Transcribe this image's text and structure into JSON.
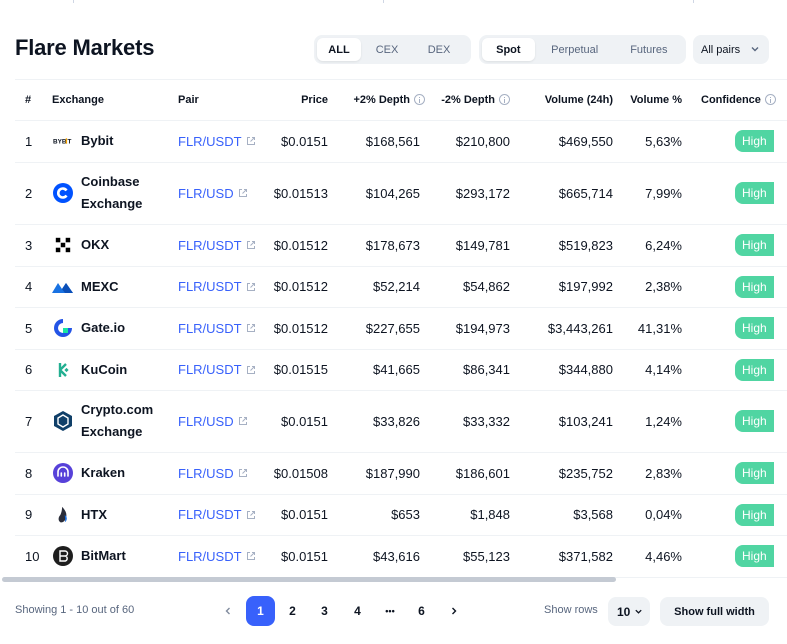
{
  "page": {
    "title": "Flare Markets"
  },
  "filters": {
    "type_tabs": [
      "ALL",
      "CEX",
      "DEX"
    ],
    "type_active": 0,
    "market_tabs": [
      "Spot",
      "Perpetual",
      "Futures"
    ],
    "market_active": 0,
    "pairs_label": "All pairs"
  },
  "table": {
    "headers": {
      "rank": "#",
      "exchange": "Exchange",
      "pair": "Pair",
      "price": "Price",
      "plus_depth": "+2% Depth",
      "minus_depth": "-2% Depth",
      "volume": "Volume (24h)",
      "volume_pct": "Volume %",
      "confidence": "Confidence"
    },
    "rows": [
      {
        "rank": "1",
        "exchange": "Bybit",
        "logo": "bybit-logo-icon",
        "pair": "FLR/USDT",
        "price": "$0.0151",
        "plus_depth": "$168,561",
        "minus_depth": "$210,800",
        "volume": "$469,550",
        "volume_pct": "5,63%",
        "confidence": "High"
      },
      {
        "rank": "2",
        "exchange": "Coinbase Exchange",
        "logo": "coinbase-logo-icon",
        "pair": "FLR/USD",
        "price": "$0.01513",
        "plus_depth": "$104,265",
        "minus_depth": "$293,172",
        "volume": "$665,714",
        "volume_pct": "7,99%",
        "confidence": "High"
      },
      {
        "rank": "3",
        "exchange": "OKX",
        "logo": "okx-logo-icon",
        "pair": "FLR/USDT",
        "price": "$0.01512",
        "plus_depth": "$178,673",
        "minus_depth": "$149,781",
        "volume": "$519,823",
        "volume_pct": "6,24%",
        "confidence": "High"
      },
      {
        "rank": "4",
        "exchange": "MEXC",
        "logo": "mexc-logo-icon",
        "pair": "FLR/USDT",
        "price": "$0.01512",
        "plus_depth": "$52,214",
        "minus_depth": "$54,862",
        "volume": "$197,992",
        "volume_pct": "2,38%",
        "confidence": "High"
      },
      {
        "rank": "5",
        "exchange": "Gate.io",
        "logo": "gateio-logo-icon",
        "pair": "FLR/USDT",
        "price": "$0.01512",
        "plus_depth": "$227,655",
        "minus_depth": "$194,973",
        "volume": "$3,443,261",
        "volume_pct": "41,31%",
        "confidence": "High"
      },
      {
        "rank": "6",
        "exchange": "KuCoin",
        "logo": "kucoin-logo-icon",
        "pair": "FLR/USDT",
        "price": "$0.01515",
        "plus_depth": "$41,665",
        "minus_depth": "$86,341",
        "volume": "$344,880",
        "volume_pct": "4,14%",
        "confidence": "High"
      },
      {
        "rank": "7",
        "exchange": "Crypto.com Exchange",
        "logo": "cryptocom-logo-icon",
        "pair": "FLR/USD",
        "price": "$0.0151",
        "plus_depth": "$33,826",
        "minus_depth": "$33,332",
        "volume": "$103,241",
        "volume_pct": "1,24%",
        "confidence": "High"
      },
      {
        "rank": "8",
        "exchange": "Kraken",
        "logo": "kraken-logo-icon",
        "pair": "FLR/USD",
        "price": "$0.01508",
        "plus_depth": "$187,990",
        "minus_depth": "$186,601",
        "volume": "$235,752",
        "volume_pct": "2,83%",
        "confidence": "High"
      },
      {
        "rank": "9",
        "exchange": "HTX",
        "logo": "htx-logo-icon",
        "pair": "FLR/USDT",
        "price": "$0.0151",
        "plus_depth": "$653",
        "minus_depth": "$1,848",
        "volume": "$3,568",
        "volume_pct": "0,04%",
        "confidence": "High"
      },
      {
        "rank": "10",
        "exchange": "BitMart",
        "logo": "bitmart-logo-icon",
        "pair": "FLR/USDT",
        "price": "$0.0151",
        "plus_depth": "$43,616",
        "minus_depth": "$55,123",
        "volume": "$371,582",
        "volume_pct": "4,46%",
        "confidence": "High"
      }
    ]
  },
  "footer": {
    "showing": "Showing 1 - 10 out of 60",
    "pages": [
      "1",
      "2",
      "3",
      "4",
      "•••",
      "6"
    ],
    "current_page": "1",
    "show_rows_label": "Show rows",
    "rows_value": "10",
    "full_width_label": "Show full width"
  },
  "colors": {
    "accent": "#3861fb",
    "confidence_high": "#16c784"
  }
}
